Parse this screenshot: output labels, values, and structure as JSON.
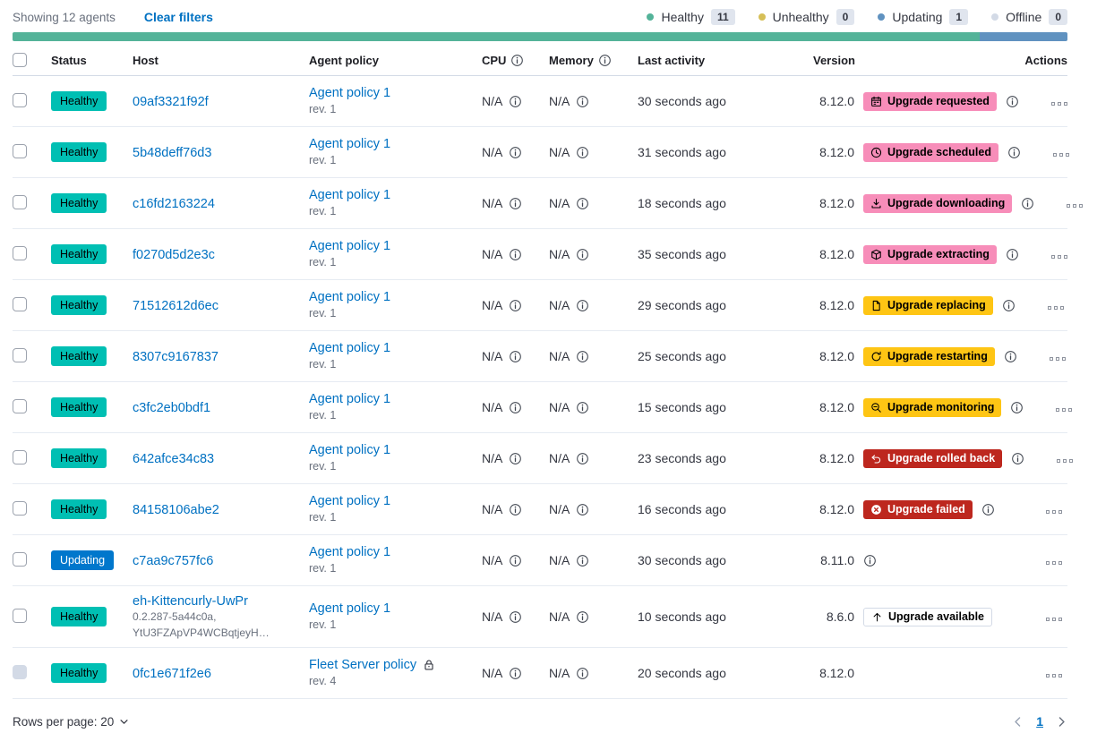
{
  "toolbar": {
    "showing": "Showing 12 agents",
    "clear_filters": "Clear filters",
    "legend": [
      {
        "label": "Healthy",
        "count": "11",
        "color": "#54B399"
      },
      {
        "label": "Unhealthy",
        "count": "0",
        "color": "#D6BF57"
      },
      {
        "label": "Updating",
        "count": "1",
        "color": "#6092C0"
      },
      {
        "label": "Offline",
        "count": "0",
        "color": "#D3DAE6"
      }
    ]
  },
  "progress_bar": {
    "segments": [
      {
        "status": "healthy",
        "color": "#54B399",
        "fraction": 0.9167
      },
      {
        "status": "updating",
        "color": "#6092C0",
        "fraction": 0.0833
      }
    ]
  },
  "table": {
    "columns": [
      {
        "label": "Status"
      },
      {
        "label": "Host"
      },
      {
        "label": "Agent policy"
      },
      {
        "label": "CPU",
        "info_icon": "info-circle"
      },
      {
        "label": "Memory",
        "info_icon": "info-circle"
      },
      {
        "label": "Last activity"
      },
      {
        "label": "Version"
      },
      {
        "label": "Actions"
      }
    ],
    "rows": [
      {
        "status": {
          "label": "Healthy",
          "type": "healthy"
        },
        "host": {
          "name": "09af3321f92f",
          "meta": []
        },
        "policy": {
          "name": "Agent policy 1",
          "rev": "rev. 1",
          "locked": false
        },
        "cpu": "N/A",
        "memory": "N/A",
        "last_activity": "30 seconds ago",
        "version": "8.12.0",
        "upgrade": {
          "label": "Upgrade requested",
          "icon": "calendar",
          "type": "accent"
        },
        "version_info": true,
        "checkbox_disabled": false
      },
      {
        "status": {
          "label": "Healthy",
          "type": "healthy"
        },
        "host": {
          "name": "5b48deff76d3",
          "meta": []
        },
        "policy": {
          "name": "Agent policy 1",
          "rev": "rev. 1",
          "locked": false
        },
        "cpu": "N/A",
        "memory": "N/A",
        "last_activity": "31 seconds ago",
        "version": "8.12.0",
        "upgrade": {
          "label": "Upgrade scheduled",
          "icon": "clock",
          "type": "accent"
        },
        "version_info": true,
        "checkbox_disabled": false
      },
      {
        "status": {
          "label": "Healthy",
          "type": "healthy"
        },
        "host": {
          "name": "c16fd2163224",
          "meta": []
        },
        "policy": {
          "name": "Agent policy 1",
          "rev": "rev. 1",
          "locked": false
        },
        "cpu": "N/A",
        "memory": "N/A",
        "last_activity": "18 seconds ago",
        "version": "8.12.0",
        "upgrade": {
          "label": "Upgrade downloading",
          "icon": "download",
          "type": "accent"
        },
        "version_info": true,
        "checkbox_disabled": false
      },
      {
        "status": {
          "label": "Healthy",
          "type": "healthy"
        },
        "host": {
          "name": "f0270d5d2e3c",
          "meta": []
        },
        "policy": {
          "name": "Agent policy 1",
          "rev": "rev. 1",
          "locked": false
        },
        "cpu": "N/A",
        "memory": "N/A",
        "last_activity": "35 seconds ago",
        "version": "8.12.0",
        "upgrade": {
          "label": "Upgrade extracting",
          "icon": "package",
          "type": "accent"
        },
        "version_info": true,
        "checkbox_disabled": false
      },
      {
        "status": {
          "label": "Healthy",
          "type": "healthy"
        },
        "host": {
          "name": "71512612d6ec",
          "meta": []
        },
        "policy": {
          "name": "Agent policy 1",
          "rev": "rev. 1",
          "locked": false
        },
        "cpu": "N/A",
        "memory": "N/A",
        "last_activity": "29 seconds ago",
        "version": "8.12.0",
        "upgrade": {
          "label": "Upgrade replacing",
          "icon": "document",
          "type": "warning"
        },
        "version_info": true,
        "checkbox_disabled": false
      },
      {
        "status": {
          "label": "Healthy",
          "type": "healthy"
        },
        "host": {
          "name": "8307c9167837",
          "meta": []
        },
        "policy": {
          "name": "Agent policy 1",
          "rev": "rev. 1",
          "locked": false
        },
        "cpu": "N/A",
        "memory": "N/A",
        "last_activity": "25 seconds ago",
        "version": "8.12.0",
        "upgrade": {
          "label": "Upgrade restarting",
          "icon": "refresh",
          "type": "warning"
        },
        "version_info": true,
        "checkbox_disabled": false
      },
      {
        "status": {
          "label": "Healthy",
          "type": "healthy"
        },
        "host": {
          "name": "c3fc2eb0bdf1",
          "meta": []
        },
        "policy": {
          "name": "Agent policy 1",
          "rev": "rev. 1",
          "locked": false
        },
        "cpu": "N/A",
        "memory": "N/A",
        "last_activity": "15 seconds ago",
        "version": "8.12.0",
        "upgrade": {
          "label": "Upgrade monitoring",
          "icon": "inspect",
          "type": "warning"
        },
        "version_info": true,
        "checkbox_disabled": false
      },
      {
        "status": {
          "label": "Healthy",
          "type": "healthy"
        },
        "host": {
          "name": "642afce34c83",
          "meta": []
        },
        "policy": {
          "name": "Agent policy 1",
          "rev": "rev. 1",
          "locked": false
        },
        "cpu": "N/A",
        "memory": "N/A",
        "last_activity": "23 seconds ago",
        "version": "8.12.0",
        "upgrade": {
          "label": "Upgrade rolled back",
          "icon": "return",
          "type": "danger"
        },
        "version_info": true,
        "checkbox_disabled": false
      },
      {
        "status": {
          "label": "Healthy",
          "type": "healthy"
        },
        "host": {
          "name": "84158106abe2",
          "meta": []
        },
        "policy": {
          "name": "Agent policy 1",
          "rev": "rev. 1",
          "locked": false
        },
        "cpu": "N/A",
        "memory": "N/A",
        "last_activity": "16 seconds ago",
        "version": "8.12.0",
        "upgrade": {
          "label": "Upgrade failed",
          "icon": "error",
          "type": "danger"
        },
        "version_info": true,
        "checkbox_disabled": false
      },
      {
        "status": {
          "label": "Updating",
          "type": "updating"
        },
        "host": {
          "name": "c7aa9c757fc6",
          "meta": []
        },
        "policy": {
          "name": "Agent policy 1",
          "rev": "rev. 1",
          "locked": false
        },
        "cpu": "N/A",
        "memory": "N/A",
        "last_activity": "30 seconds ago",
        "version": "8.11.0",
        "upgrade": null,
        "version_info": true,
        "checkbox_disabled": false
      },
      {
        "status": {
          "label": "Healthy",
          "type": "healthy"
        },
        "host": {
          "name": "eh-Kittencurly-UwPr",
          "meta": [
            "0.2.287-5a44c0a,",
            "YtU3FZApVP4WCBqtjeyH…"
          ]
        },
        "policy": {
          "name": "Agent policy 1",
          "rev": "rev. 1",
          "locked": false
        },
        "cpu": "N/A",
        "memory": "N/A",
        "last_activity": "10 seconds ago",
        "version": "8.6.0",
        "upgrade": {
          "label": "Upgrade available",
          "icon": "up-arrow",
          "type": "hollow"
        },
        "version_info": false,
        "checkbox_disabled": false
      },
      {
        "status": {
          "label": "Healthy",
          "type": "healthy"
        },
        "host": {
          "name": "0fc1e671f2e6",
          "meta": []
        },
        "policy": {
          "name": "Fleet Server policy",
          "rev": "rev. 4",
          "locked": true
        },
        "cpu": "N/A",
        "memory": "N/A",
        "last_activity": "20 seconds ago",
        "version": "8.12.0",
        "upgrade": null,
        "version_info": false,
        "checkbox_disabled": true
      }
    ]
  },
  "footer": {
    "rows_per_page": "Rows per page: 20",
    "page": "1"
  },
  "colors": {
    "link": "#0071C2",
    "healthy_badge": "#00BFB3",
    "updating_badge": "#0077CC",
    "accent_badge": "#F78DB9",
    "warning_badge": "#FEC514",
    "danger_badge": "#BD271E"
  },
  "icons": [
    "calendar",
    "clock",
    "download",
    "package",
    "document",
    "refresh",
    "inspect",
    "return",
    "error",
    "up-arrow",
    "lock",
    "info-circle",
    "boxes-horizontal",
    "chevron-down",
    "chevron-left",
    "chevron-right"
  ]
}
